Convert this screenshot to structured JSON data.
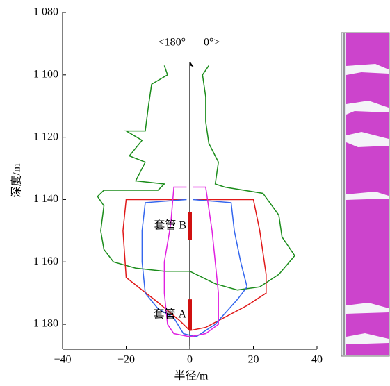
{
  "chart_data": {
    "type": "line",
    "x_label": "半径/m",
    "y_label": "深度/m",
    "xlim": [
      -40,
      40
    ],
    "ylim": [
      1080,
      1188
    ],
    "y_inverted": true,
    "xticks": [
      {
        "value": -40,
        "label": "−40"
      },
      {
        "value": -20,
        "label": "−20"
      },
      0,
      20,
      40
    ],
    "yticks": [
      {
        "value": 1080,
        "label": "1 080"
      },
      {
        "value": 1100,
        "label": "1 100"
      },
      {
        "value": 1120,
        "label": "1 120"
      },
      {
        "value": 1140,
        "label": "1 140"
      },
      {
        "value": 1160,
        "label": "1 160"
      },
      {
        "value": 1180,
        "label": "1 180"
      }
    ],
    "annotations": [
      "<180°",
      "0°>"
    ],
    "casings": [
      {
        "label": "套管 B",
        "y": [
          1144,
          1153
        ]
      },
      {
        "label": "套管 A",
        "y": [
          1172,
          1182
        ]
      }
    ],
    "series": [
      {
        "color": "#1a8c1a",
        "x": [
          -8,
          -7,
          -12,
          -13,
          -14,
          -20,
          -15,
          -19,
          -14,
          -17,
          -8,
          -10,
          -27,
          -29,
          -27,
          -28,
          -27,
          -24,
          -17,
          -8,
          0,
          8,
          15,
          22,
          28,
          33,
          31,
          29,
          28,
          23,
          11,
          8,
          9,
          6,
          5,
          5,
          4,
          6
        ],
        "values": [
          1097,
          1100,
          1103,
          1110,
          1118,
          1118,
          1121,
          1126,
          1128,
          1134,
          1135,
          1137,
          1137,
          1139,
          1142,
          1150,
          1156,
          1160,
          1162,
          1163,
          1163,
          1167,
          1169,
          1168,
          1164,
          1158,
          1155,
          1152,
          1145,
          1138,
          1136,
          1135,
          1128,
          1122,
          1115,
          1107,
          1100,
          1097
        ]
      },
      {
        "color": "#e01818",
        "x": [
          -2,
          -20,
          -21,
          -20,
          -10,
          -3,
          0,
          5,
          18,
          24,
          24,
          22,
          20,
          2
        ],
        "values": [
          1140,
          1140,
          1150,
          1165,
          1173,
          1179,
          1182,
          1181,
          1174,
          1170,
          1164,
          1150,
          1140,
          1140
        ]
      },
      {
        "color": "#3366ee",
        "x": [
          -1,
          -14,
          -15,
          -15,
          -14,
          -10,
          -5,
          -2,
          2,
          8,
          15,
          18,
          16,
          14,
          13,
          1
        ],
        "values": [
          1140,
          1141,
          1150,
          1160,
          1170,
          1175,
          1178,
          1183,
          1184,
          1180,
          1172,
          1168,
          1160,
          1150,
          1141,
          1140
        ]
      },
      {
        "color": "#e020e0",
        "x": [
          -1,
          -5,
          -6,
          -8,
          -8,
          -7,
          -5,
          0,
          5,
          9,
          9,
          8,
          7,
          5,
          1
        ],
        "values": [
          1136,
          1136,
          1148,
          1160,
          1170,
          1180,
          1183,
          1184,
          1183,
          1180,
          1170,
          1160,
          1150,
          1136,
          1136
        ]
      }
    ]
  }
}
